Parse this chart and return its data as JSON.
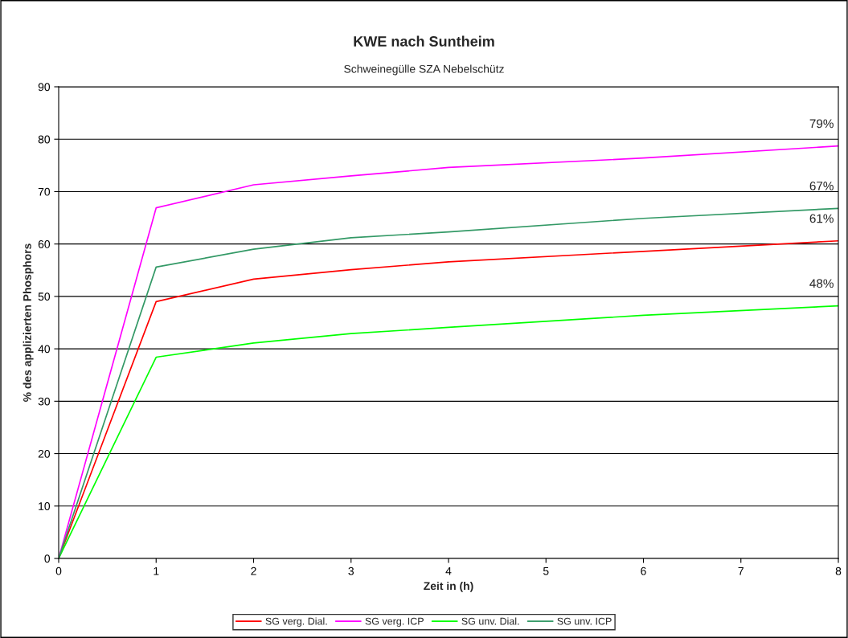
{
  "chart_data": {
    "type": "line",
    "title": "KWE nach Suntheim",
    "subtitle": "Schweinegülle SZA Nebelschütz",
    "xlabel": "Zeit in (h)",
    "ylabel": "% des applizierten Phosphors",
    "x": [
      0,
      1,
      2,
      3,
      4,
      6,
      8
    ],
    "series": [
      {
        "name": "SG verg. Dial.",
        "color": "#ff0000",
        "values": [
          0,
          49.0,
          53.3,
          55.1,
          56.6,
          58.6,
          60.6
        ]
      },
      {
        "name": "SG verg. ICP",
        "color": "#ff00ff",
        "values": [
          0,
          66.9,
          71.3,
          73.0,
          74.6,
          76.4,
          78.7
        ]
      },
      {
        "name": "SG unv. Dial.",
        "color": "#00ff00",
        "values": [
          0,
          38.4,
          41.1,
          42.9,
          44.1,
          46.4,
          48.2
        ]
      },
      {
        "name": "SG unv. ICP",
        "color": "#339966",
        "values": [
          0,
          55.6,
          59.0,
          61.2,
          62.3,
          64.9,
          66.8
        ]
      }
    ],
    "annotations": [
      {
        "text": "79%",
        "y": 78.7
      },
      {
        "text": "67%",
        "y": 66.8
      },
      {
        "text": "61%",
        "y": 60.6
      },
      {
        "text": "48%",
        "y": 48.2
      }
    ],
    "xlim": [
      0,
      8
    ],
    "xticks": [
      0,
      1,
      2,
      3,
      4,
      5,
      6,
      7,
      8
    ],
    "ylim": [
      0,
      90
    ],
    "yticks": [
      0,
      10,
      20,
      30,
      40,
      50,
      60,
      70,
      80,
      90
    ],
    "grid": "y",
    "legend": "bottom",
    "marker": "none",
    "line_style": "solid"
  }
}
